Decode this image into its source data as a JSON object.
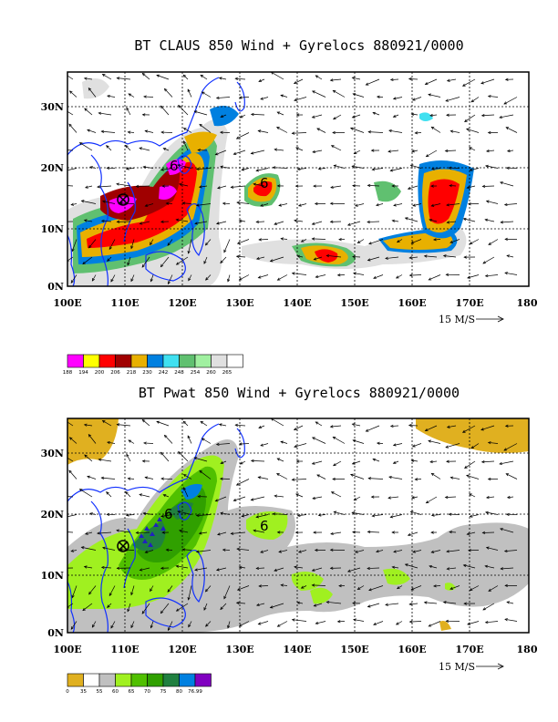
{
  "panel1": {
    "title": "BT CLAUS 850 Wind + Gyrelocs 880921/0000",
    "lat_labels": [
      "30N",
      "20N",
      "10N",
      "0N"
    ],
    "lon_labels": [
      "100E",
      "110E",
      "120E",
      "130E",
      "140E",
      "150E",
      "160E",
      "170E",
      "180"
    ],
    "scale_label": "15 M/S",
    "legend": [
      {
        "label": "188",
        "color": "#ff00ff"
      },
      {
        "label": "194",
        "color": "#ffff00"
      },
      {
        "label": "200",
        "color": "#ff0000"
      },
      {
        "label": "206",
        "color": "#a00000"
      },
      {
        "label": "218",
        "color": "#e8b000"
      },
      {
        "label": "230",
        "color": "#0080e0"
      },
      {
        "label": "242",
        "color": "#40e0f0"
      },
      {
        "label": "248",
        "color": "#60c070"
      },
      {
        "label": "254",
        "color": "#a0f0a0"
      },
      {
        "label": "260",
        "color": "#e0e0e0"
      },
      {
        "label": "265",
        "color": "#ffffff"
      }
    ]
  },
  "panel2": {
    "title": "BT Pwat 850 Wind + Gyrelocs 880921/0000",
    "lat_labels": [
      "30N",
      "20N",
      "10N",
      "0N"
    ],
    "lon_labels": [
      "100E",
      "110E",
      "120E",
      "130E",
      "140E",
      "150E",
      "160E",
      "170E",
      "180"
    ],
    "scale_label": "15 M/S",
    "legend": [
      {
        "label": "0",
        "color": "#e0b020"
      },
      {
        "label": "35",
        "color": "#ffffff"
      },
      {
        "label": "55",
        "color": "#c0c0c0"
      },
      {
        "label": "60",
        "color": "#a0f020"
      },
      {
        "label": "65",
        "color": "#50c000"
      },
      {
        "label": "70",
        "color": "#30a000"
      },
      {
        "label": "75",
        "color": "#208040"
      },
      {
        "label": "80",
        "color": "#0080e0"
      },
      {
        "label": "76.99",
        "color": "#8000c0"
      }
    ]
  },
  "gyres": {
    "symbol_b": "6",
    "symbol_c": "6",
    "symbol_e": "6"
  }
}
